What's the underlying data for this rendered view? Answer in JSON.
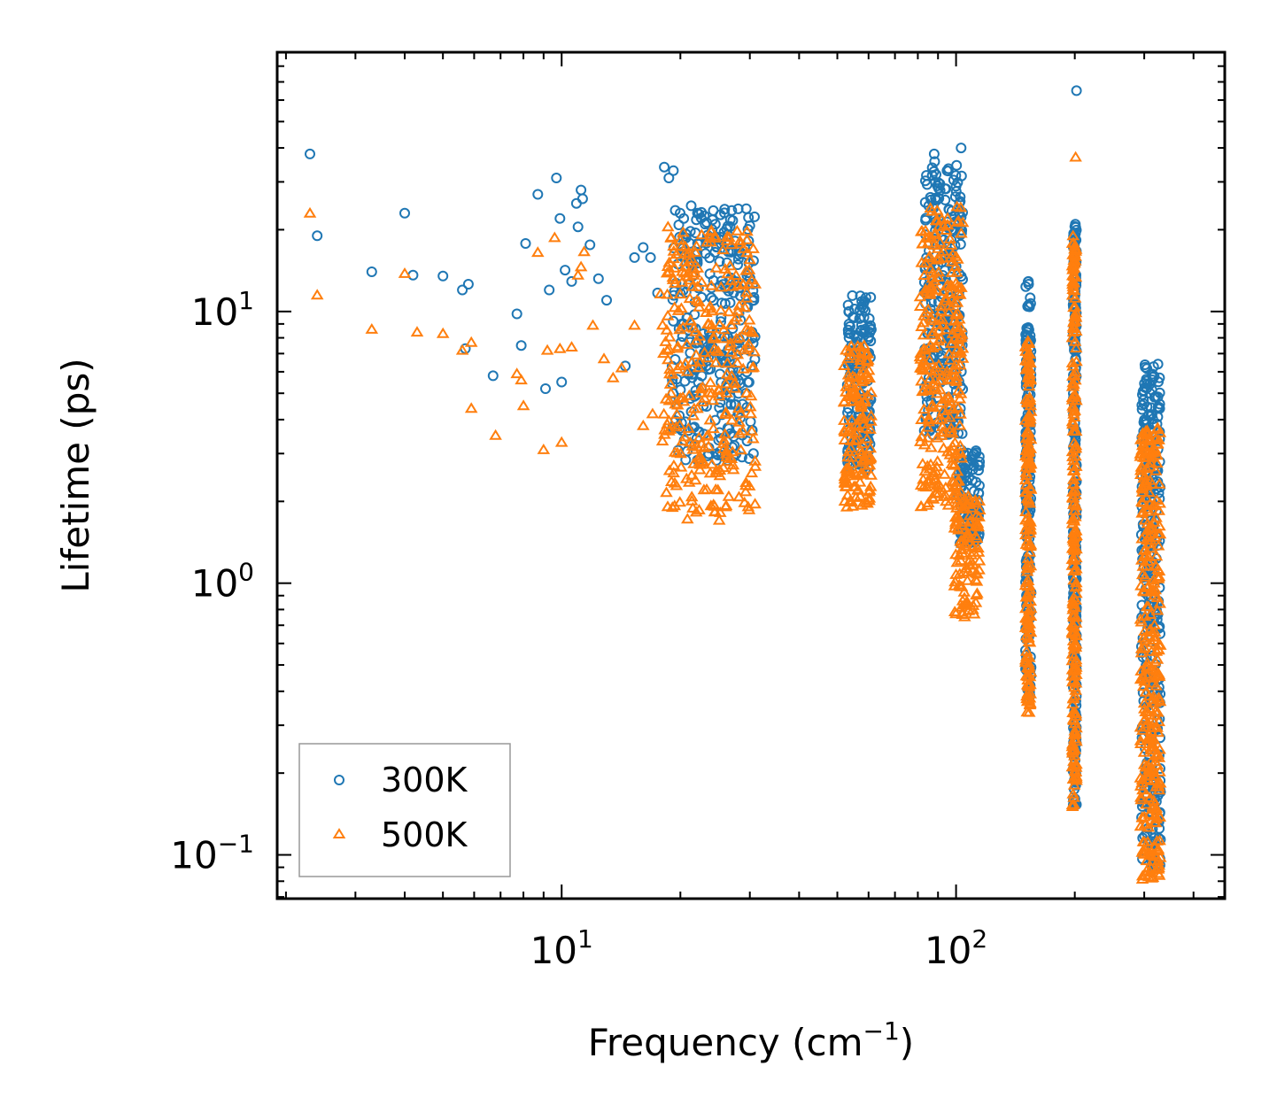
{
  "chart_data": {
    "type": "scatter",
    "title": "",
    "xlabel": "Frequency (cm",
    "xlabel_sup": "−1",
    "xlabel_end": ")",
    "ylabel": "Lifetime (ps)",
    "xscale": "log",
    "yscale": "log",
    "xlim": [
      1.9,
      480
    ],
    "ylim": [
      0.069,
      90
    ],
    "x_ticks": [
      {
        "value": 10,
        "base": "10",
        "exp": "1"
      },
      {
        "value": 100,
        "base": "10",
        "exp": "2"
      }
    ],
    "y_ticks": [
      {
        "value": 0.1,
        "base": "10",
        "exp": "−1"
      },
      {
        "value": 1,
        "base": "10",
        "exp": "0"
      },
      {
        "value": 10,
        "base": "10",
        "exp": "1"
      }
    ],
    "legend": {
      "position": "lower-left"
    },
    "series": [
      {
        "name": "300K",
        "marker": "circle",
        "color": "#1f77b4",
        "clusters": [
          {
            "x": [
              19,
              31
            ],
            "y": [
              2.8,
              24
            ],
            "n": 320
          },
          {
            "x": [
              53,
              61
            ],
            "y": [
              2.6,
              12
            ],
            "n": 150
          },
          {
            "x": [
              83,
              104
            ],
            "y": [
              3.5,
              36
            ],
            "n": 280
          },
          {
            "x": [
              101,
              115
            ],
            "y": [
              1.4,
              3.1
            ],
            "n": 110
          },
          {
            "x": [
              150,
              155
            ],
            "y": [
              0.35,
              13
            ],
            "n": 180
          },
          {
            "x": [
              198,
              202
            ],
            "y": [
              0.15,
              21
            ],
            "n": 240
          },
          {
            "x": [
              295,
              330
            ],
            "y": [
              0.09,
              6.5
            ],
            "n": 320
          }
        ],
        "points": [
          [
            2.3,
            38
          ],
          [
            2.4,
            19
          ],
          [
            3.3,
            14
          ],
          [
            4.0,
            23
          ],
          [
            4.2,
            13.6
          ],
          [
            5.0,
            13.5
          ],
          [
            5.6,
            12
          ],
          [
            5.8,
            12.6
          ],
          [
            5.7,
            7.3
          ],
          [
            6.7,
            5.8
          ],
          [
            7.7,
            9.8
          ],
          [
            7.9,
            7.5
          ],
          [
            8.1,
            17.8
          ],
          [
            8.7,
            27
          ],
          [
            9.1,
            5.2
          ],
          [
            9.3,
            12
          ],
          [
            9.7,
            31
          ],
          [
            9.9,
            22
          ],
          [
            10.0,
            5.5
          ],
          [
            10.2,
            14.2
          ],
          [
            10.6,
            12.9
          ],
          [
            10.9,
            25
          ],
          [
            11.0,
            20.5
          ],
          [
            11.2,
            28
          ],
          [
            11.3,
            26
          ],
          [
            11.8,
            17.6
          ],
          [
            12.4,
            13.2
          ],
          [
            13.0,
            11
          ],
          [
            14.5,
            6.3
          ],
          [
            15.3,
            15.8
          ],
          [
            16.1,
            17.2
          ],
          [
            16.8,
            15.8
          ],
          [
            17.5,
            11.7
          ],
          [
            18.2,
            34
          ],
          [
            18.7,
            31
          ],
          [
            19.2,
            33
          ],
          [
            20.4,
            22
          ],
          [
            21.3,
            24.5
          ],
          [
            22.1,
            23
          ],
          [
            23.0,
            22.5
          ],
          [
            202,
            65
          ],
          [
            103,
            40
          ],
          [
            88,
            38
          ]
        ]
      },
      {
        "name": "500K",
        "marker": "triangle",
        "color": "#ff7f0e",
        "clusters": [
          {
            "x": [
              18,
              31
            ],
            "y": [
              1.7,
              20
            ],
            "n": 320
          },
          {
            "x": [
              52,
              61
            ],
            "y": [
              1.9,
              7.5
            ],
            "n": 150
          },
          {
            "x": [
              81,
              104
            ],
            "y": [
              1.9,
              25
            ],
            "n": 280
          },
          {
            "x": [
              99,
              115
            ],
            "y": [
              0.75,
              2.1
            ],
            "n": 110
          },
          {
            "x": [
              150,
              155
            ],
            "y": [
              0.33,
              7.8
            ],
            "n": 180
          },
          {
            "x": [
              197,
              202
            ],
            "y": [
              0.15,
              18
            ],
            "n": 240
          },
          {
            "x": [
              293,
              330
            ],
            "y": [
              0.08,
              3.8
            ],
            "n": 320
          }
        ],
        "points": [
          [
            2.3,
            23
          ],
          [
            2.4,
            11.5
          ],
          [
            3.3,
            8.6
          ],
          [
            4.0,
            13.8
          ],
          [
            4.3,
            8.4
          ],
          [
            5.0,
            8.3
          ],
          [
            5.6,
            7.2
          ],
          [
            5.9,
            7.7
          ],
          [
            5.9,
            4.4
          ],
          [
            6.8,
            3.5
          ],
          [
            7.7,
            5.9
          ],
          [
            7.9,
            5.6
          ],
          [
            8.0,
            4.5
          ],
          [
            8.7,
            16.5
          ],
          [
            9.0,
            3.1
          ],
          [
            9.2,
            7.2
          ],
          [
            9.6,
            18.7
          ],
          [
            9.9,
            7.3
          ],
          [
            10.0,
            3.3
          ],
          [
            10.6,
            7.4
          ],
          [
            11.0,
            13.6
          ],
          [
            11.2,
            14.6
          ],
          [
            11.4,
            16.6
          ],
          [
            12.0,
            8.9
          ],
          [
            12.8,
            6.7
          ],
          [
            13.5,
            5.7
          ],
          [
            14.2,
            6.2
          ],
          [
            15.3,
            8.9
          ],
          [
            16.1,
            3.8
          ],
          [
            17.0,
            4.2
          ],
          [
            17.8,
            11.6
          ],
          [
            18.6,
            20.5
          ],
          [
            201,
            37
          ],
          [
            198,
            19
          ],
          [
            200,
            16
          ]
        ]
      }
    ]
  }
}
